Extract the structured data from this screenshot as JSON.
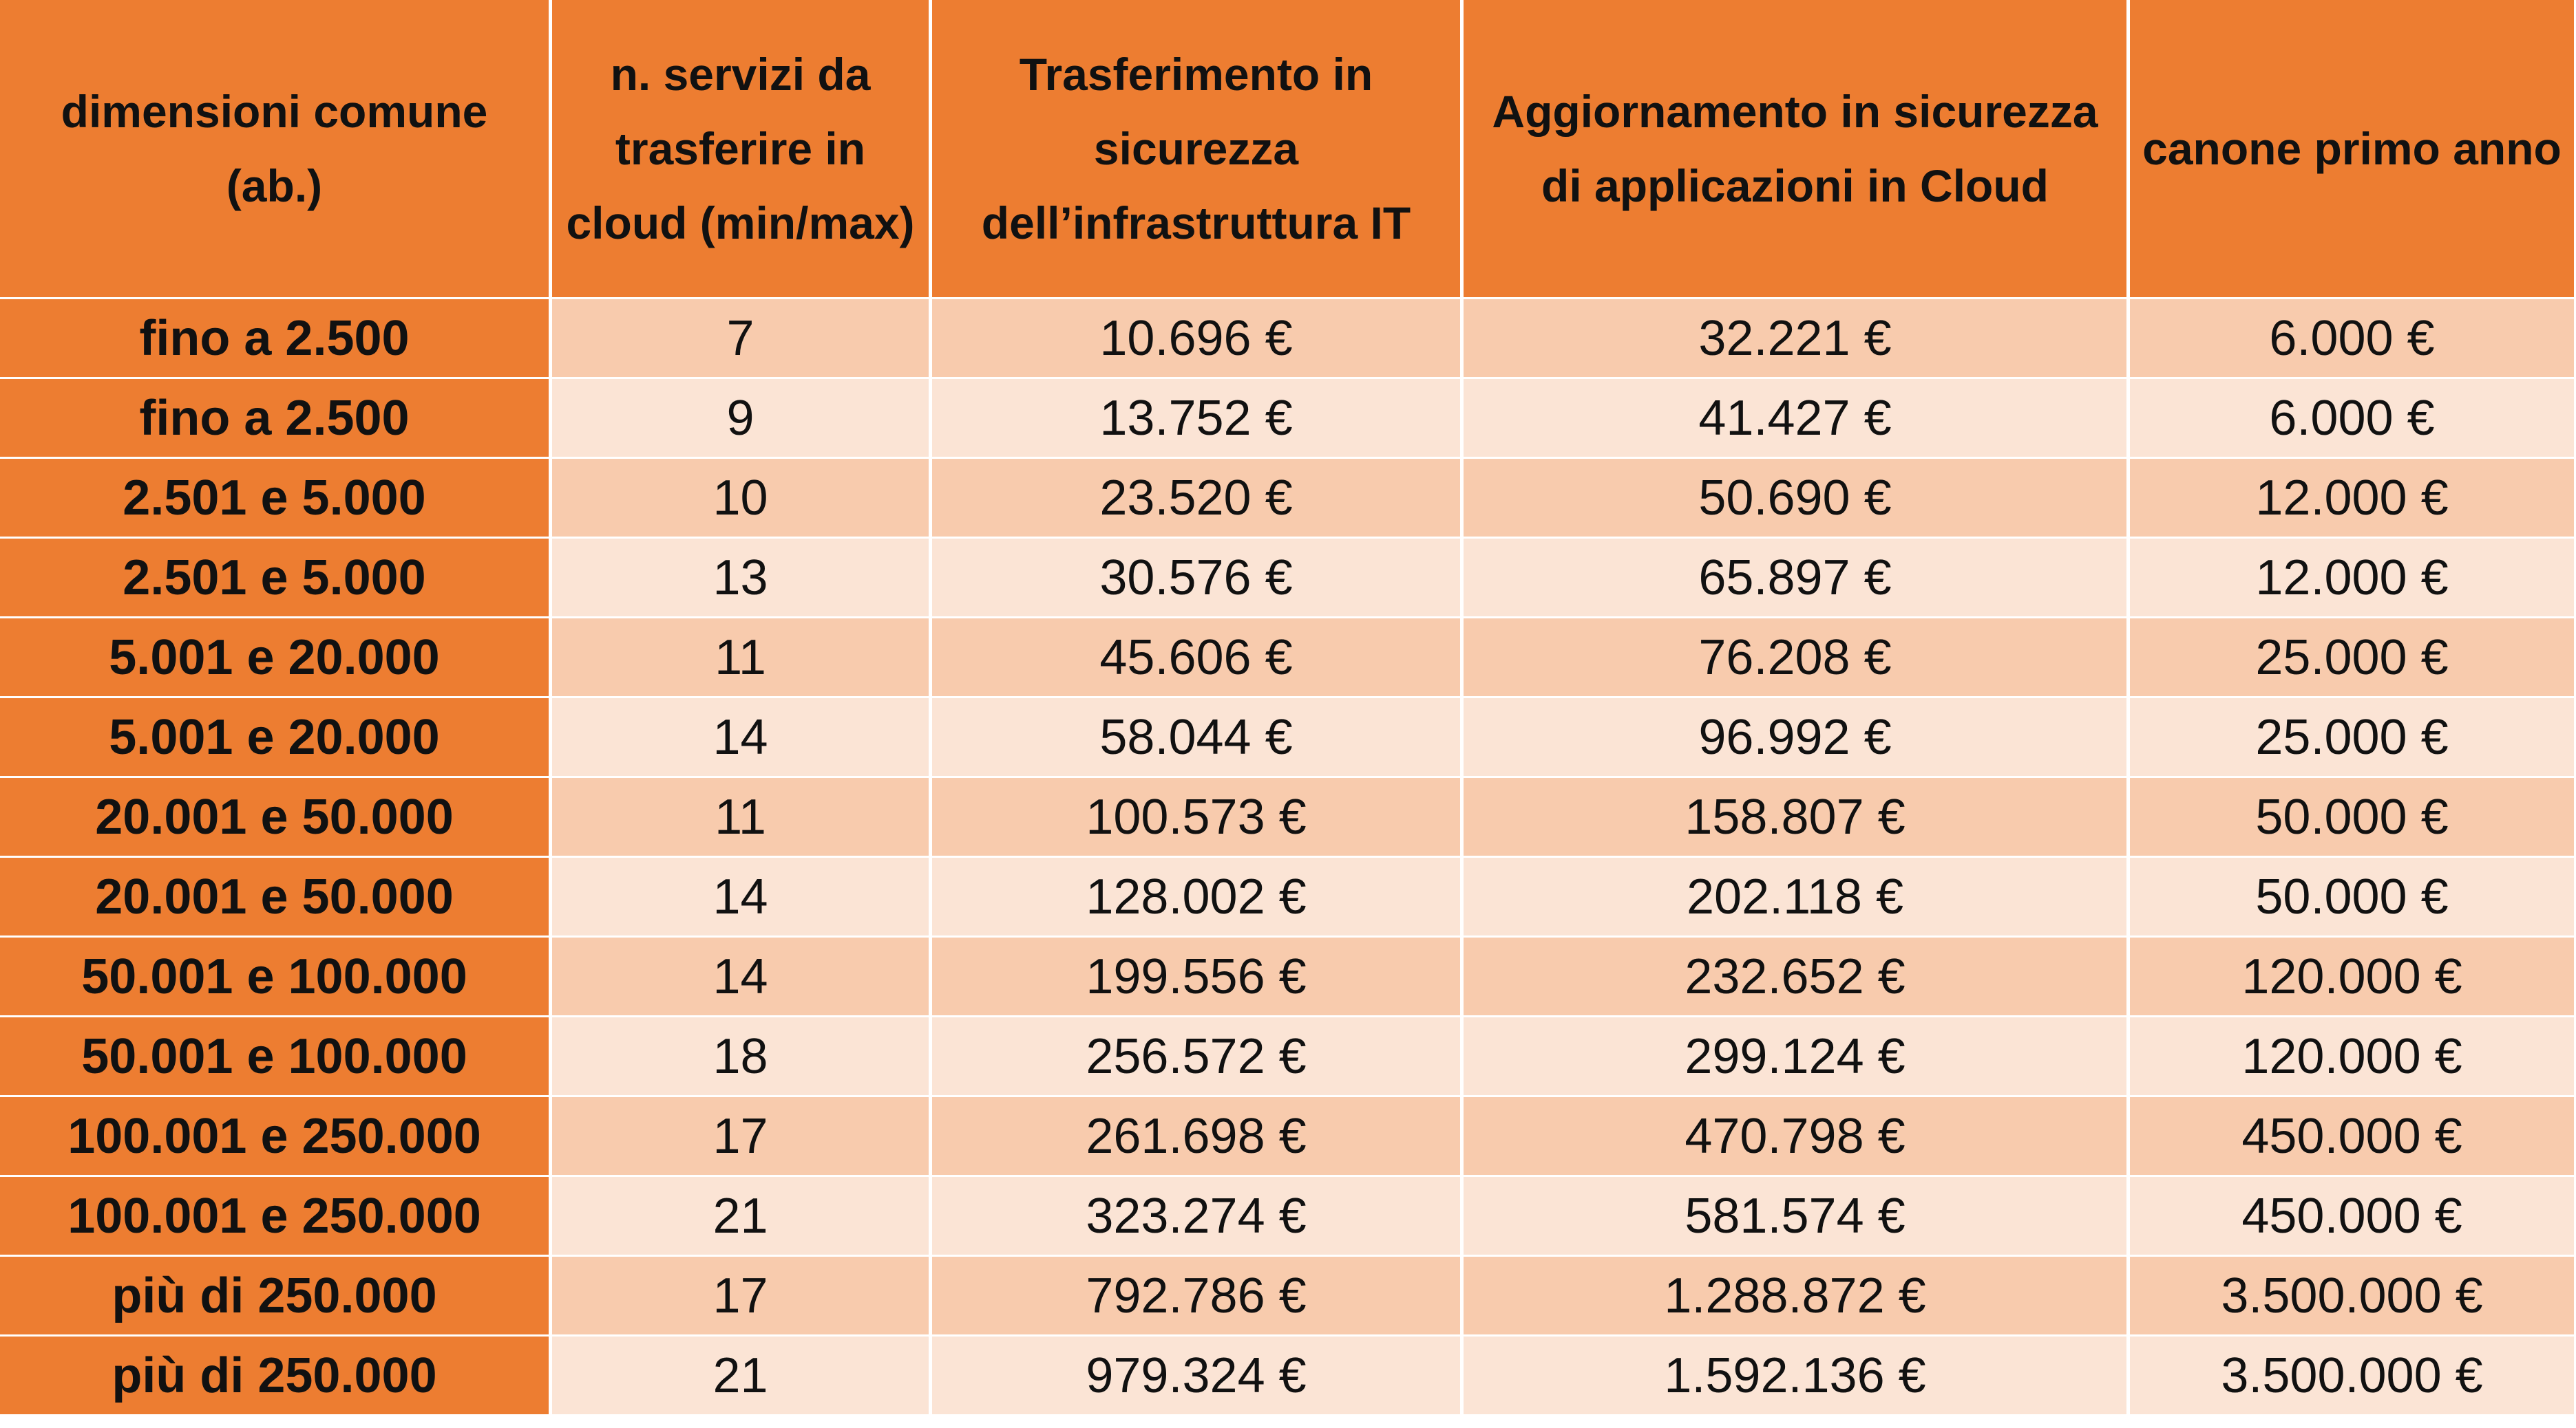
{
  "table": {
    "headers": [
      "dimensioni comune (ab.)",
      "n. servizi da trasferire in cloud (min/max)",
      "Trasferimento in sicurezza dell’infrastruttura IT",
      "Aggiornamento in sicurezza di applicazioni in Cloud",
      "canone primo anno"
    ],
    "rows": [
      [
        "fino a 2.500",
        "7",
        "10.696 €",
        "32.221 €",
        "6.000 €"
      ],
      [
        "fino a 2.500",
        "9",
        "13.752 €",
        "41.427 €",
        "6.000 €"
      ],
      [
        "2.501 e 5.000",
        "10",
        "23.520 €",
        "50.690 €",
        "12.000 €"
      ],
      [
        "2.501 e 5.000",
        "13",
        "30.576 €",
        "65.897 €",
        "12.000 €"
      ],
      [
        "5.001 e 20.000",
        "11",
        "45.606 €",
        "76.208 €",
        "25.000 €"
      ],
      [
        "5.001 e 20.000",
        "14",
        "58.044 €",
        "96.992 €",
        "25.000 €"
      ],
      [
        "20.001 e 50.000",
        "11",
        "100.573 €",
        "158.807 €",
        "50.000 €"
      ],
      [
        "20.001 e 50.000",
        "14",
        "128.002 €",
        "202.118 €",
        "50.000 €"
      ],
      [
        "50.001 e 100.000",
        "14",
        "199.556 €",
        "232.652 €",
        "120.000 €"
      ],
      [
        "50.001 e 100.000",
        "18",
        "256.572 €",
        "299.124 €",
        "120.000 €"
      ],
      [
        "100.001 e 250.000",
        "17",
        "261.698 €",
        "470.798 €",
        "450.000 €"
      ],
      [
        "100.001 e 250.000",
        "21",
        "323.274 €",
        "581.574 €",
        "450.000 €"
      ],
      [
        "più di 250.000",
        "17",
        "792.786 €",
        "1.288.872 €",
        "3.500.000 €"
      ],
      [
        "più di 250.000",
        "21",
        "979.324 €",
        "1.592.136 €",
        "3.500.000 €"
      ]
    ]
  }
}
